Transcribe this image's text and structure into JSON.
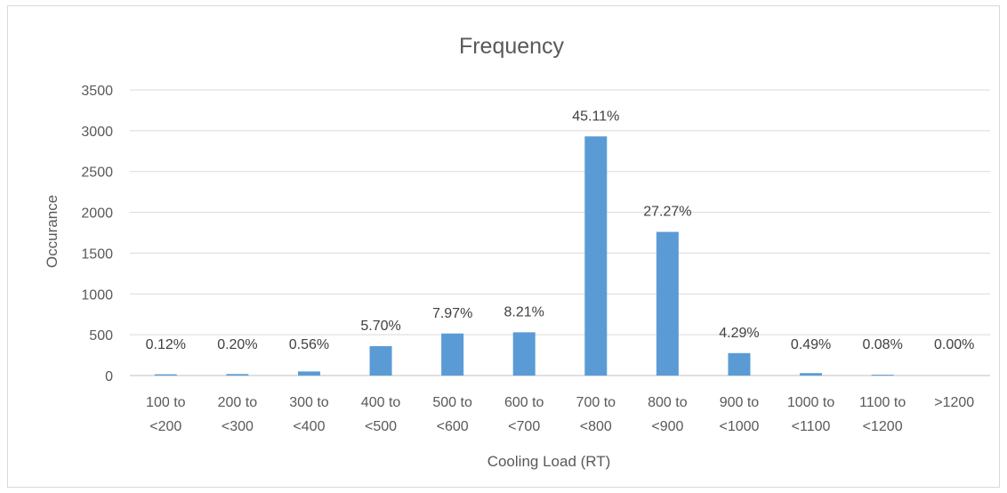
{
  "chart_data": {
    "type": "bar",
    "title": "Frequency",
    "xlabel": "Cooling Load (RT)",
    "ylabel": "Occurance",
    "ylim": [
      0,
      3500
    ],
    "yticks": [
      "0",
      "500",
      "1000",
      "1500",
      "2000",
      "2500",
      "3000",
      "3500"
    ],
    "grid": true,
    "categories": [
      [
        "100 to",
        "<200"
      ],
      [
        "200 to",
        "<300"
      ],
      [
        "300 to",
        "<400"
      ],
      [
        "400 to",
        "<500"
      ],
      [
        "500 to",
        "<600"
      ],
      [
        "600 to",
        "<700"
      ],
      [
        "700 to",
        "<800"
      ],
      [
        "800 to",
        "<900"
      ],
      [
        "900 to",
        "<1000"
      ],
      [
        "1000 to",
        "<1100"
      ],
      [
        "1100 to",
        "<1200"
      ],
      [
        ">1200"
      ]
    ],
    "values": [
      15,
      18,
      50,
      360,
      515,
      530,
      2930,
      1760,
      275,
      30,
      10,
      0
    ],
    "data_labels": [
      "0.12%",
      "0.20%",
      "0.56%",
      "5.70%",
      "7.97%",
      "8.21%",
      "45.11%",
      "27.27%",
      "4.29%",
      "0.49%",
      "0.08%",
      "0.00%"
    ],
    "bar_color": "#5b9bd5",
    "grid_color": "#d9d9d9"
  }
}
